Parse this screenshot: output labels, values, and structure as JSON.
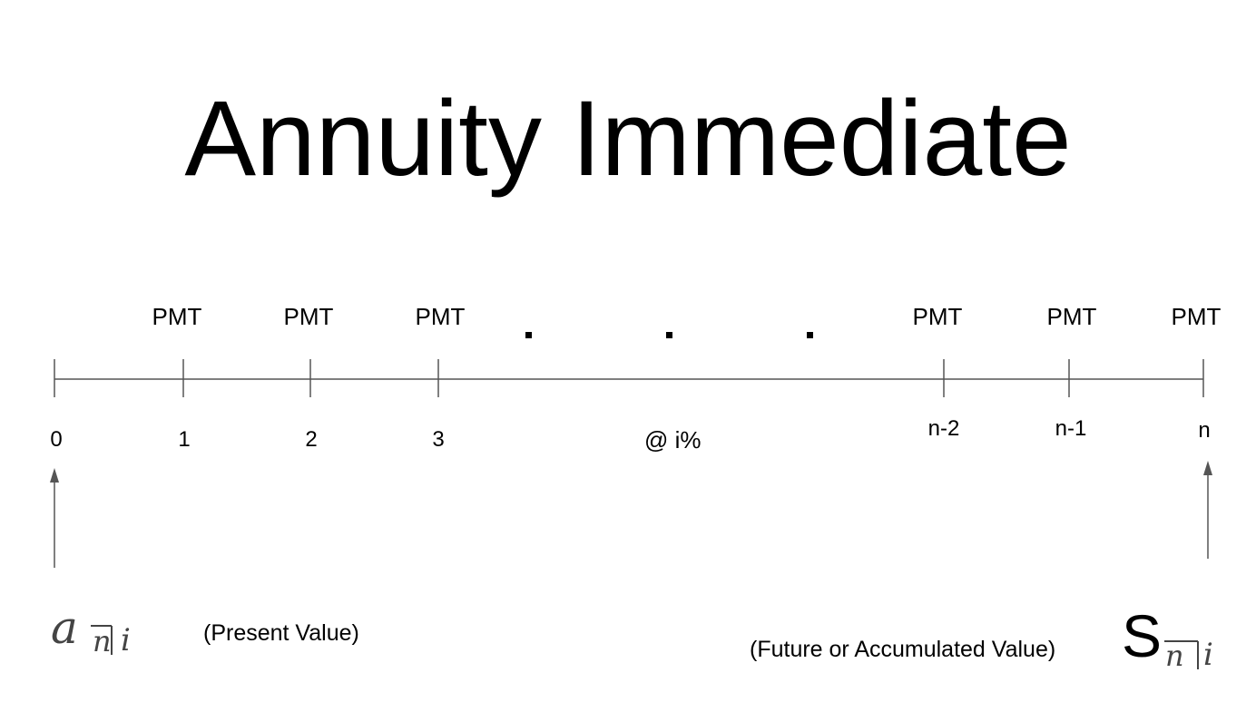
{
  "title": "Annuity Immediate",
  "timeline": {
    "payments": [
      {
        "label": "PMT"
      },
      {
        "label": "PMT"
      },
      {
        "label": "PMT"
      },
      {
        "label": "PMT"
      },
      {
        "label": "PMT"
      },
      {
        "label": "PMT"
      }
    ],
    "periods": [
      "0",
      "1",
      "2",
      "3",
      "n-2",
      "n-1",
      "n"
    ],
    "rate_label": "@ i%",
    "ellipsis": [
      ".",
      ".",
      "."
    ]
  },
  "present_value": {
    "symbol_main": "a",
    "symbol_sub_n": "n",
    "symbol_sub_i": "i",
    "label": "(Present Value)"
  },
  "future_value": {
    "symbol_main": "S",
    "symbol_sub_n": "n",
    "symbol_sub_i": "i",
    "label": "(Future or Accumulated Value)"
  },
  "colors": {
    "line": "#555555",
    "text": "#000000",
    "symbol_gray": "#444444"
  }
}
